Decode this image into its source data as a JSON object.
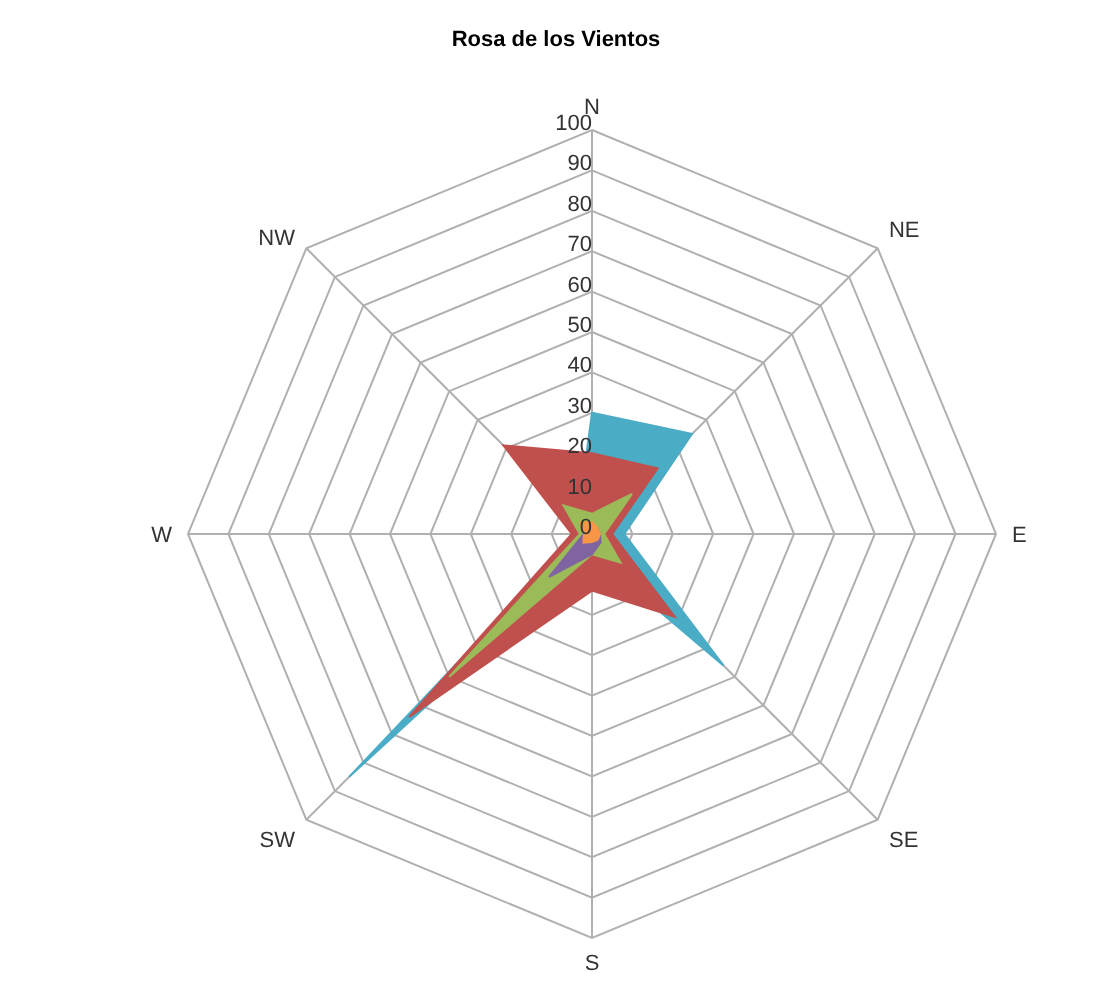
{
  "chart_data": {
    "type": "radar",
    "title": "Rosa de los Vientos",
    "categories": [
      "N",
      "NE",
      "E",
      "SE",
      "S",
      "SW",
      "W",
      "NW"
    ],
    "series": [
      {
        "color": "#4bacc6",
        "values": [
          30,
          35,
          8,
          46,
          5,
          85,
          3,
          5
        ]
      },
      {
        "color": "#c0504d",
        "values": [
          20,
          23,
          5,
          29,
          14,
          64,
          5,
          31
        ]
      },
      {
        "color": "#9bbb59",
        "values": [
          5,
          14,
          3,
          10,
          5,
          50,
          3,
          10
        ]
      },
      {
        "color": "#8064a2",
        "values": [
          2,
          2,
          2,
          3,
          5,
          15,
          2,
          2
        ]
      },
      {
        "color": "#f79646",
        "values": [
          3,
          2,
          2,
          2,
          2,
          3,
          2,
          4
        ]
      }
    ],
    "ylim": [
      0,
      100
    ],
    "yticks": [
      0,
      10,
      20,
      30,
      40,
      50,
      60,
      70,
      80,
      90,
      100
    ],
    "grid": true
  }
}
